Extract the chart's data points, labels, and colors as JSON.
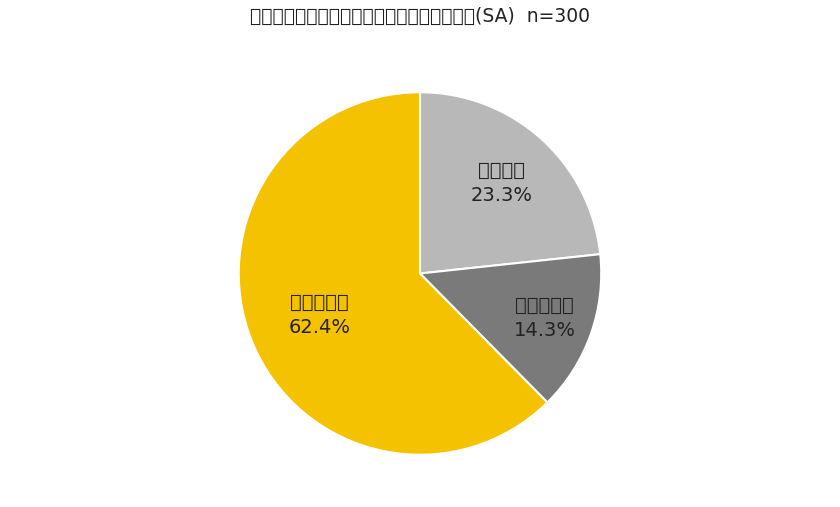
{
  "title": "節分の日に豆まきをする予定はありますか？(SA)  n=300",
  "slices": [
    {
      "label": "する予定\n23.3%",
      "value": 23.3,
      "color": "#b8b8b8"
    },
    {
      "label": "分からない\n14.3%",
      "value": 14.3,
      "color": "#7a7a7a"
    },
    {
      "label": "しない予定\n62.4%",
      "value": 62.4,
      "color": "#f5c200"
    }
  ],
  "background_color": "#ffffff",
  "title_fontsize": 13.5,
  "label_fontsize": 14,
  "startangle": 90,
  "wedge_linewidth": 1.5,
  "wedge_linecolor": "#ffffff",
  "label_distances": [
    0.67,
    0.73,
    0.6
  ]
}
